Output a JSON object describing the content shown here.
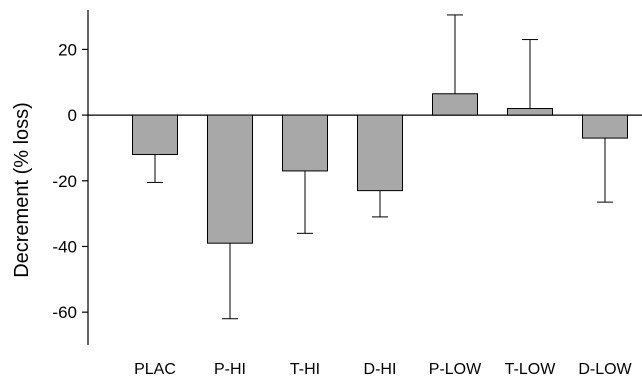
{
  "chart_data": {
    "type": "bar",
    "title": "",
    "xlabel": "",
    "ylabel": "Decrement (% loss)",
    "categories": [
      "PLAC",
      "P-HI",
      "T-HI",
      "D-HI",
      "P-LOW",
      "T-LOW",
      "D-LOW"
    ],
    "values": [
      -12,
      -39,
      -17,
      -23,
      6.5,
      2,
      -7
    ],
    "error_bars": [
      8.5,
      23,
      19,
      8,
      24,
      21,
      19.5
    ],
    "error_direction": [
      "down",
      "down",
      "down",
      "down",
      "up",
      "up",
      "down"
    ],
    "ylim": [
      -70,
      32
    ],
    "yticks": [
      -60,
      -40,
      -20,
      0,
      20
    ],
    "grid": false,
    "colors": {
      "bar_fill": "#a8a8a8",
      "bar_stroke": "#000000"
    }
  }
}
